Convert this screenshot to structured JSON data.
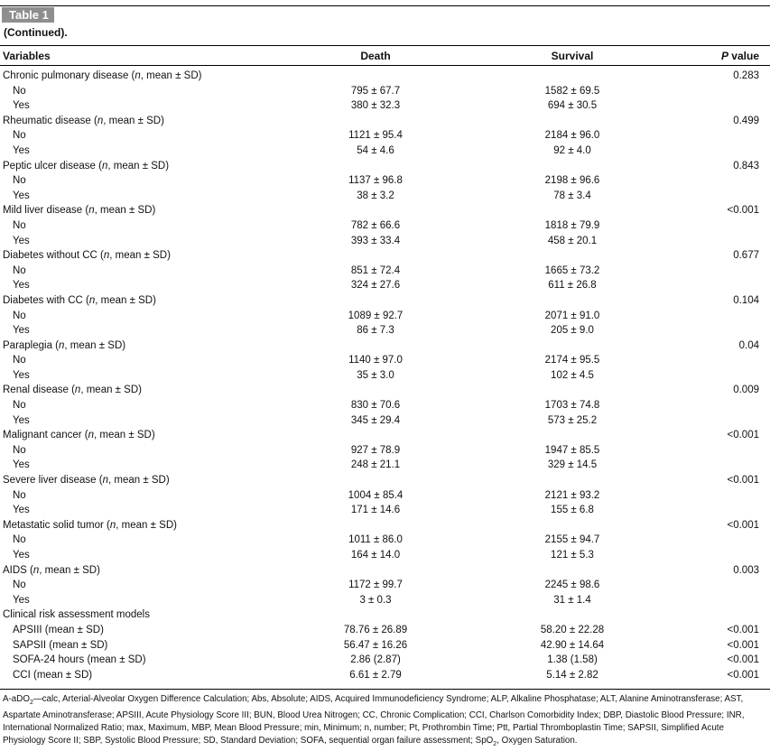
{
  "table": {
    "label": "Table 1",
    "subtitle": "(Continued).",
    "headers": {
      "variables": "Variables",
      "death": "Death",
      "survival": "Survival",
      "p_italic": "P",
      "p_rest": " value"
    },
    "rows": [
      {
        "sub": false,
        "name": "Chronic pulmonary disease",
        "suffix": true,
        "death": "",
        "survival": "",
        "p": "0.283"
      },
      {
        "sub": true,
        "name": "No",
        "death": "795 ± 67.7",
        "survival": "1582 ± 69.5",
        "p": ""
      },
      {
        "sub": true,
        "name": "Yes",
        "death": "380 ± 32.3",
        "survival": "694 ± 30.5",
        "p": ""
      },
      {
        "sub": false,
        "name": "Rheumatic disease",
        "suffix": true,
        "death": "",
        "survival": "",
        "p": "0.499"
      },
      {
        "sub": true,
        "name": "No",
        "death": "1121 ± 95.4",
        "survival": "2184 ± 96.0",
        "p": ""
      },
      {
        "sub": true,
        "name": "Yes",
        "death": "54 ± 4.6",
        "survival": "92 ± 4.0",
        "p": ""
      },
      {
        "sub": false,
        "name": "Peptic ulcer disease",
        "suffix": true,
        "death": "",
        "survival": "",
        "p": "0.843"
      },
      {
        "sub": true,
        "name": "No",
        "death": "1137 ± 96.8",
        "survival": "2198 ± 96.6",
        "p": ""
      },
      {
        "sub": true,
        "name": "Yes",
        "death": "38 ± 3.2",
        "survival": "78 ± 3.4",
        "p": ""
      },
      {
        "sub": false,
        "name": "Mild liver disease",
        "suffix": true,
        "death": "",
        "survival": "",
        "p": "<0.001"
      },
      {
        "sub": true,
        "name": "No",
        "death": "782 ± 66.6",
        "survival": "1818 ± 79.9",
        "p": ""
      },
      {
        "sub": true,
        "name": "Yes",
        "death": "393 ± 33.4",
        "survival": "458 ± 20.1",
        "p": ""
      },
      {
        "sub": false,
        "name": "Diabetes without CC",
        "suffix": true,
        "death": "",
        "survival": "",
        "p": "0.677"
      },
      {
        "sub": true,
        "name": "No",
        "death": "851 ± 72.4",
        "survival": "1665 ± 73.2",
        "p": ""
      },
      {
        "sub": true,
        "name": "Yes",
        "death": "324 ± 27.6",
        "survival": "611 ± 26.8",
        "p": ""
      },
      {
        "sub": false,
        "name": "Diabetes with CC",
        "suffix": true,
        "death": "",
        "survival": "",
        "p": "0.104"
      },
      {
        "sub": true,
        "name": "No",
        "death": "1089 ± 92.7",
        "survival": "2071 ± 91.0",
        "p": ""
      },
      {
        "sub": true,
        "name": "Yes",
        "death": "86 ± 7.3",
        "survival": "205 ± 9.0",
        "p": ""
      },
      {
        "sub": false,
        "name": "Paraplegia",
        "suffix": true,
        "death": "",
        "survival": "",
        "p": "0.04"
      },
      {
        "sub": true,
        "name": "No",
        "death": "1140 ± 97.0",
        "survival": "2174 ± 95.5",
        "p": ""
      },
      {
        "sub": true,
        "name": "Yes",
        "death": "35 ± 3.0",
        "survival": "102 ± 4.5",
        "p": ""
      },
      {
        "sub": false,
        "name": "Renal disease",
        "suffix": true,
        "death": "",
        "survival": "",
        "p": "0.009"
      },
      {
        "sub": true,
        "name": "No",
        "death": "830 ± 70.6",
        "survival": "1703 ± 74.8",
        "p": ""
      },
      {
        "sub": true,
        "name": "Yes",
        "death": "345 ± 29.4",
        "survival": "573 ± 25.2",
        "p": ""
      },
      {
        "sub": false,
        "name": "Malignant cancer",
        "suffix": true,
        "death": "",
        "survival": "",
        "p": "<0.001"
      },
      {
        "sub": true,
        "name": "No",
        "death": "927 ± 78.9",
        "survival": "1947 ± 85.5",
        "p": ""
      },
      {
        "sub": true,
        "name": "Yes",
        "death": "248 ± 21.1",
        "survival": "329 ± 14.5",
        "p": ""
      },
      {
        "sub": false,
        "name": "Severe liver disease",
        "suffix": true,
        "death": "",
        "survival": "",
        "p": "<0.001"
      },
      {
        "sub": true,
        "name": "No",
        "death": "1004 ± 85.4",
        "survival": "2121 ± 93.2",
        "p": ""
      },
      {
        "sub": true,
        "name": "Yes",
        "death": "171 ± 14.6",
        "survival": "155 ± 6.8",
        "p": ""
      },
      {
        "sub": false,
        "name": "Metastatic solid tumor",
        "suffix": true,
        "death": "",
        "survival": "",
        "p": "<0.001"
      },
      {
        "sub": true,
        "name": "No",
        "death": "1011 ± 86.0",
        "survival": "2155 ± 94.7",
        "p": ""
      },
      {
        "sub": true,
        "name": "Yes",
        "death": "164 ± 14.0",
        "survival": "121 ± 5.3",
        "p": ""
      },
      {
        "sub": false,
        "name": "AIDS",
        "suffix": true,
        "death": "",
        "survival": "",
        "p": "0.003"
      },
      {
        "sub": true,
        "name": "No",
        "death": "1172 ± 99.7",
        "survival": "2245 ± 98.6",
        "p": ""
      },
      {
        "sub": true,
        "name": "Yes",
        "death": "3 ± 0.3",
        "survival": "31 ± 1.4",
        "p": ""
      },
      {
        "sub": false,
        "name": "Clinical risk assessment models",
        "suffix": false,
        "death": "",
        "survival": "",
        "p": ""
      },
      {
        "sub": true,
        "name": "APSIII (mean ± SD)",
        "death": "78.76 ± 26.89",
        "survival": "58.20 ± 22.28",
        "p": "<0.001"
      },
      {
        "sub": true,
        "name": "SAPSII (mean ± SD)",
        "death": "56.47 ± 16.26",
        "survival": "42.90 ± 14.64",
        "p": "<0.001"
      },
      {
        "sub": true,
        "name": "SOFA-24 hours (mean ± SD)",
        "death": "2.86 (2.87)",
        "survival": "1.38 (1.58)",
        "p": "<0.001"
      },
      {
        "sub": true,
        "name": "CCI (mean ± SD)",
        "death": "6.61 ± 2.79",
        "survival": "5.14 ± 2.82",
        "p": "<0.001"
      }
    ],
    "row_suffix_open": " (",
    "row_suffix_n": "n",
    "row_suffix_close": ", mean ± SD)",
    "footnote_pre": "A-aDO",
    "footnote_sub1": "2",
    "footnote_mid": "—calc, Arterial-Alveolar Oxygen Difference Calculation; Abs, Absolute; AIDS, Acquired Immunodeficiency Syndrome; ALP, Alkaline Phosphatase; ALT, Alanine Aminotransferase; AST, Aspartate Aminotransferase; APSIII, Acute Physiology Score III; BUN, Blood Urea Nitrogen; CC, Chronic Complication; CCI, Charlson Comorbidity Index; DBP, Diastolic Blood Pressure; INR, International Normalized Ratio; max, Maximum, MBP, Mean Blood Pressure; min, Minimum; n, number; Pt, Prothrombin Time; Ptt, Partial Thromboplastin Time; SAPSII, Simplified Acute Physiology Score II; SBP, Systolic Blood Pressure; SD, Standard Deviation; SOFA, sequential organ failure assessment; SpO",
    "footnote_sub2": "2",
    "footnote_end": ", Oxygen Saturation."
  }
}
